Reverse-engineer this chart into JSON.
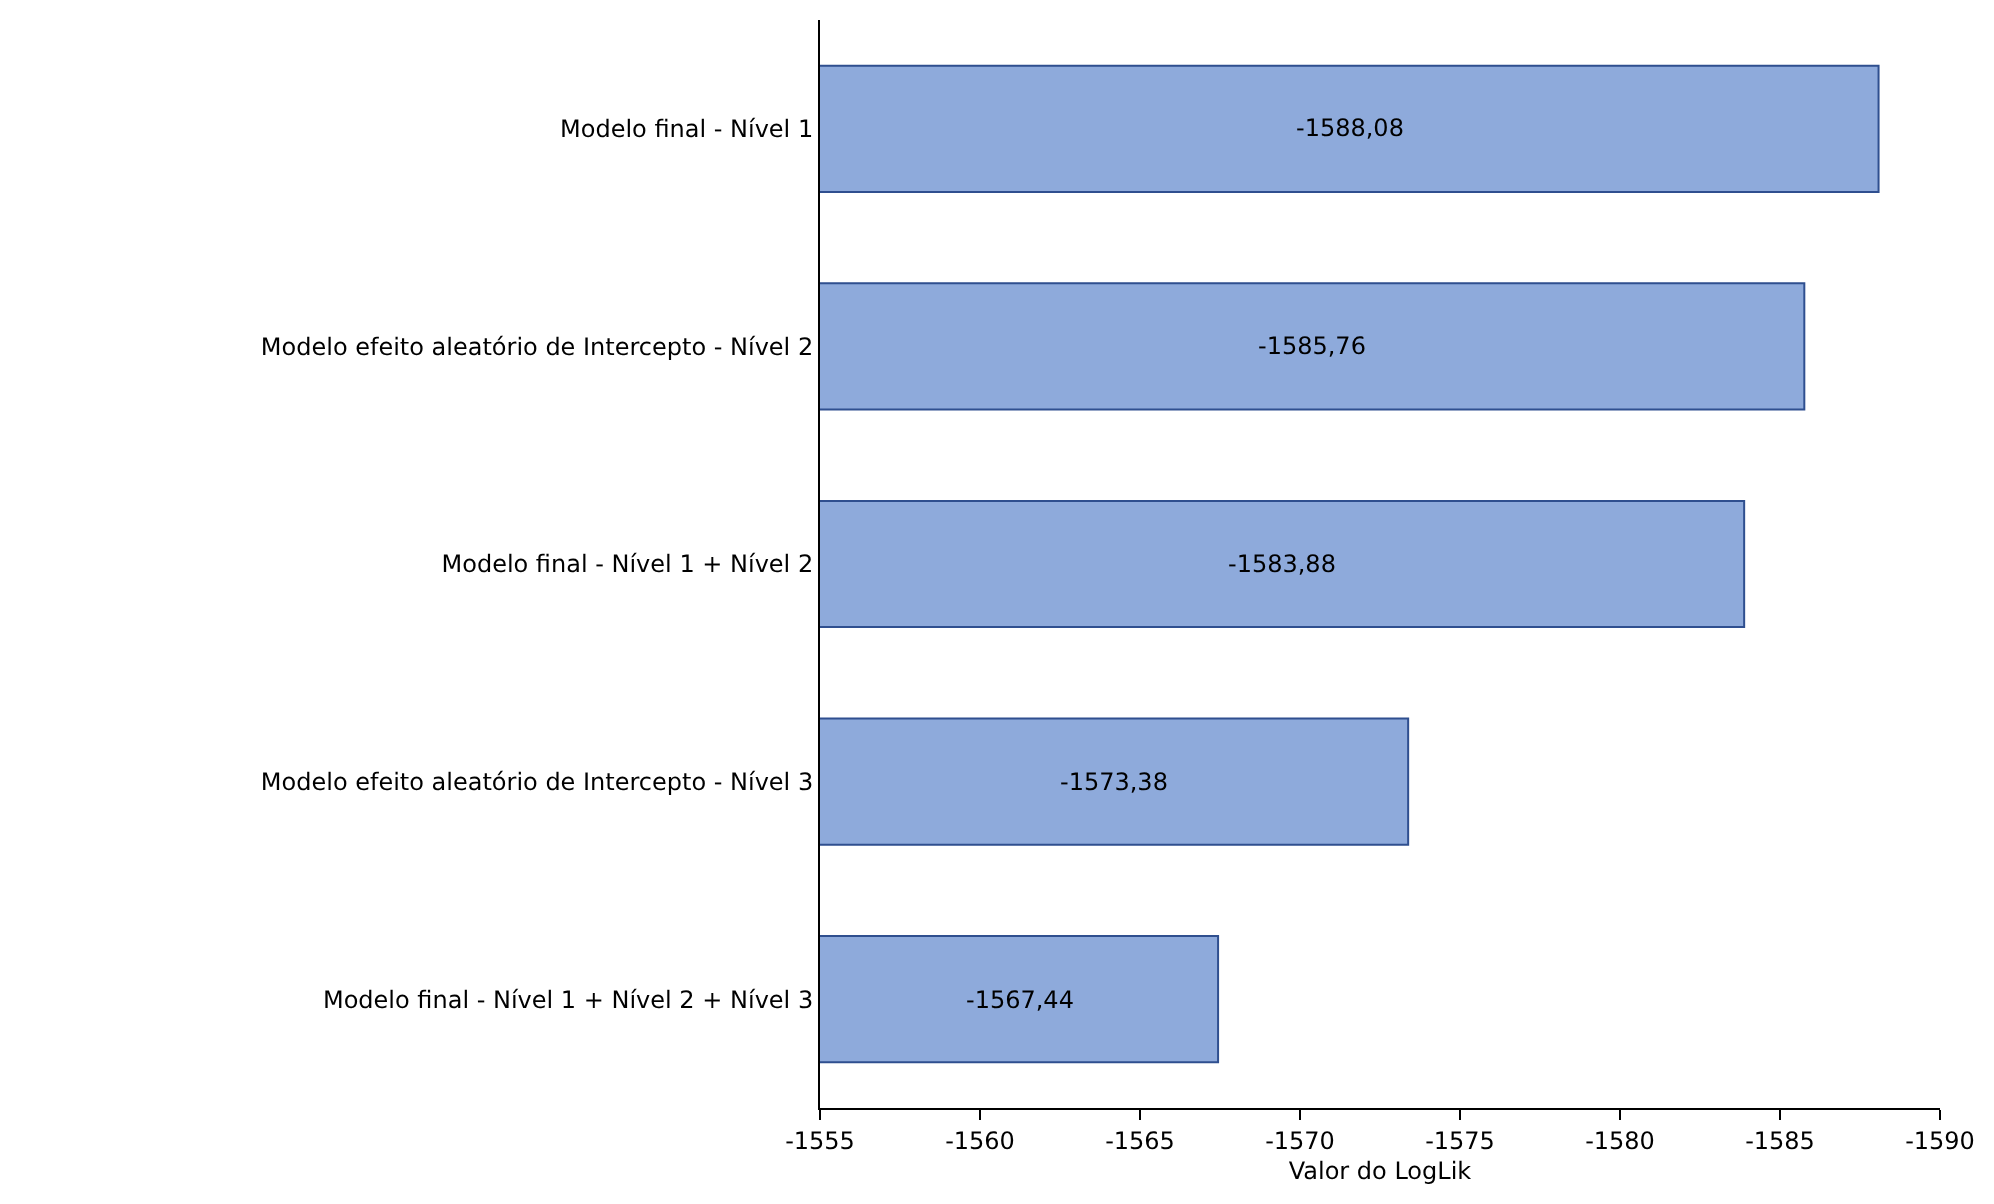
{
  "chart_data": {
    "type": "bar",
    "orientation": "horizontal",
    "xlabel": "Valor do LogLik",
    "categories": [
      "Modelo final - Nível 1",
      "Modelo efeito aleatório de Intercepto - Nível 2",
      "Modelo final - Nível 1 + Nível 2",
      "Modelo efeito aleatório de Intercepto - Nível 3",
      "Modelo final - Nível 1 + Nível 2 + Nível 3"
    ],
    "values": [
      -1588.08,
      -1585.76,
      -1583.88,
      -1573.38,
      -1567.44
    ],
    "value_labels": [
      "-1588,08",
      "-1585,76",
      "-1583,88",
      "-1573,38",
      "-1567,44"
    ],
    "color": "#8eaadb",
    "xlim": [
      -1555,
      -1590
    ],
    "xticks": [
      -1555,
      -1560,
      -1565,
      -1570,
      -1575,
      -1580,
      -1585,
      -1590
    ],
    "legend": false
  }
}
